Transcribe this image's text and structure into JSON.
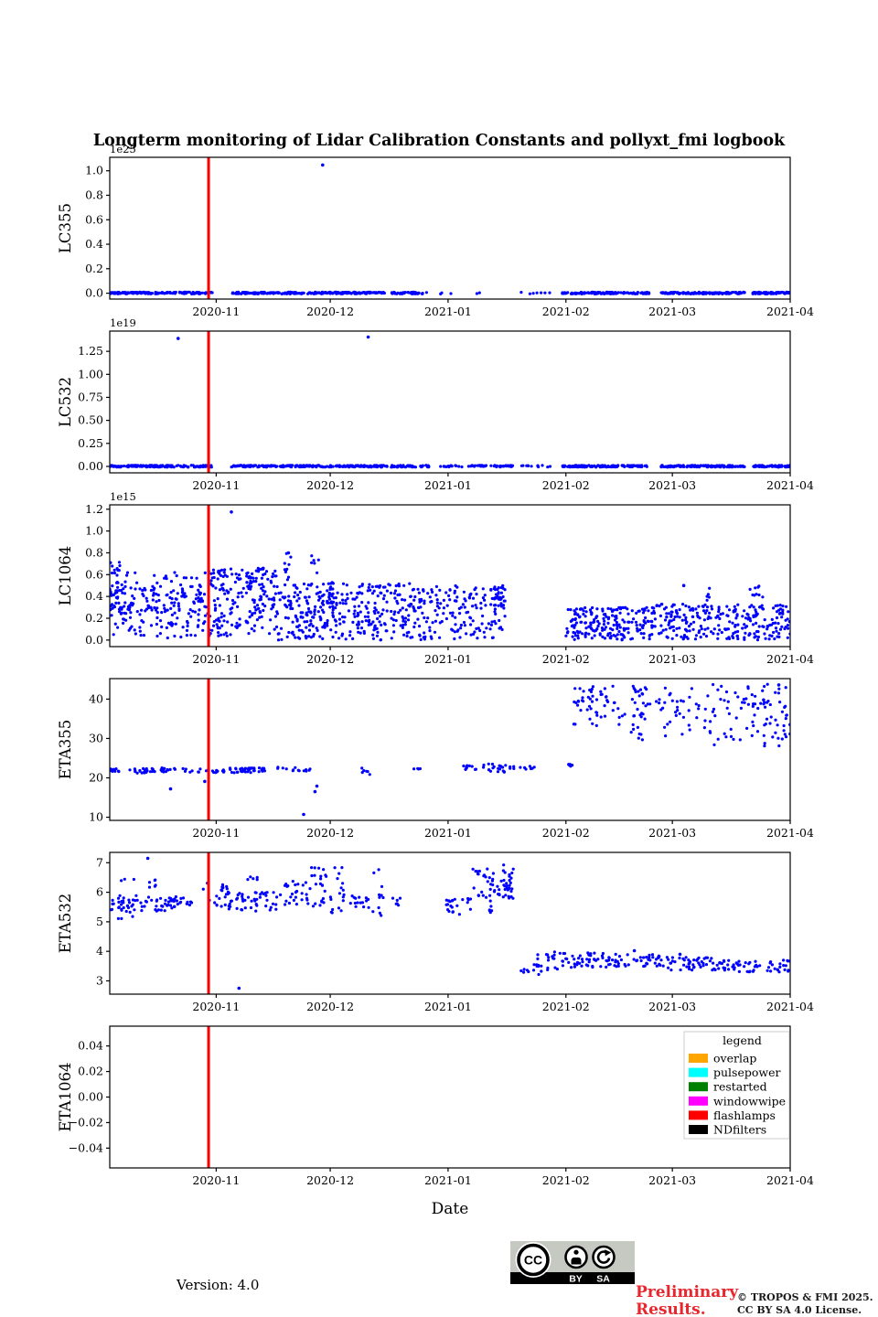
{
  "title": "Longterm monitoring of Lidar Calibration Constants and pollyxt_fmi logbook",
  "xlabel": "Date",
  "colors": {
    "marker": "#0000ff",
    "axis": "#000000",
    "event_flashlamps": "#ff0000",
    "legend_border": "#cccccc",
    "preliminary": "#e8262d",
    "cc_badge_gray": "#c6c8c2"
  },
  "footer": {
    "version": "Version: 4.0",
    "preliminary_line1": "Preliminary",
    "preliminary_line2": "Results.",
    "copyright_line1": "© TROPOS & FMI 2025.",
    "copyright_line2": "CC BY SA 4.0 License.",
    "cc_badge": {
      "cc_label": "CC",
      "by_label": "BY",
      "sa_label": "SA"
    }
  },
  "chart_data": {
    "type": "scatter",
    "title": "Longterm monitoring of Lidar Calibration Constants and pollyxt_fmi logbook",
    "xlabel": "Date",
    "x_axis": {
      "xlim_days": [
        0,
        179
      ],
      "start_date": "2020-10-04",
      "end_date": "2021-04-01",
      "tick_days": [
        28,
        58,
        89,
        120,
        148,
        179
      ],
      "tick_labels": [
        "2020-11",
        "2020-12",
        "2021-01",
        "2021-02",
        "2021-03",
        "2021-04"
      ]
    },
    "event_lines": [
      {
        "label": "flashlamps",
        "date": "2020-10-30",
        "day": 26,
        "color": "#ff0000",
        "width": 3
      }
    ],
    "legend": {
      "title": "legend",
      "position": "upper-right-of-last-panel",
      "entries": [
        {
          "label": "overlap",
          "color": "#ffa500"
        },
        {
          "label": "pulsepower",
          "color": "#00ffff"
        },
        {
          "label": "restarted",
          "color": "#008000"
        },
        {
          "label": "windowwipe",
          "color": "#ff00ff"
        },
        {
          "label": "flashlamps",
          "color": "#ff0000"
        },
        {
          "label": "NDfilters",
          "color": "#000000"
        }
      ]
    },
    "panels": [
      {
        "name": "LC355",
        "ylabel": "LC355",
        "offset_text": "1e25",
        "ylim": [
          -0.048,
          1.11
        ],
        "yticks": [
          0.0,
          0.2,
          0.4,
          0.6,
          0.8,
          1.0
        ],
        "ytick_labels": [
          "0.0",
          "0.2",
          "0.4",
          "0.6",
          "0.8",
          "1.0"
        ],
        "bands": [
          [
            0,
            27,
            -0.006,
            0.009,
            140
          ],
          [
            32,
            56,
            -0.006,
            0.009,
            130
          ],
          [
            56,
            73,
            -0.006,
            0.009,
            90
          ],
          [
            74,
            84,
            -0.006,
            0.009,
            45
          ],
          [
            87,
            116,
            -0.006,
            0.009,
            12
          ],
          [
            119,
            142,
            -0.006,
            0.009,
            120
          ],
          [
            145,
            167,
            -0.006,
            0.009,
            130
          ],
          [
            169,
            179,
            -0.006,
            0.009,
            60
          ]
        ],
        "points": [
          [
            56,
            1.047
          ]
        ]
      },
      {
        "name": "LC532",
        "ylabel": "LC532",
        "offset_text": "1e19",
        "ylim": [
          -0.07,
          1.47
        ],
        "yticks": [
          0.0,
          0.25,
          0.5,
          0.75,
          1.0,
          1.25
        ],
        "ytick_labels": [
          "0.00",
          "0.25",
          "0.50",
          "0.75",
          "1.00",
          "1.25"
        ],
        "bands": [
          [
            0,
            27,
            -0.008,
            0.012,
            150
          ],
          [
            32,
            56,
            -0.008,
            0.012,
            140
          ],
          [
            56,
            73,
            -0.008,
            0.012,
            100
          ],
          [
            74,
            84,
            -0.008,
            0.012,
            50
          ],
          [
            85,
            95,
            -0.008,
            0.012,
            18
          ],
          [
            95,
            106,
            -0.008,
            0.012,
            45
          ],
          [
            108,
            116,
            -0.008,
            0.012,
            12
          ],
          [
            119,
            142,
            -0.008,
            0.012,
            130
          ],
          [
            145,
            167,
            -0.008,
            0.012,
            140
          ],
          [
            169,
            179,
            -0.008,
            0.012,
            65
          ]
        ],
        "points": [
          [
            18,
            1.39
          ],
          [
            68,
            1.405
          ]
        ]
      },
      {
        "name": "LC1064",
        "ylabel": "LC1064",
        "offset_text": "1e15",
        "ylim": [
          -0.06,
          1.24
        ],
        "yticks": [
          0.0,
          0.2,
          0.4,
          0.6,
          0.8,
          1.0,
          1.2
        ],
        "ytick_labels": [
          "0.0",
          "0.2",
          "0.4",
          "0.6",
          "0.8",
          "1.0",
          "1.2"
        ],
        "bands": [
          [
            0,
            3,
            0.28,
            0.72,
            35
          ],
          [
            0,
            26,
            0.02,
            0.5,
            140
          ],
          [
            3,
            26,
            0.25,
            0.62,
            70
          ],
          [
            26,
            44,
            0.03,
            0.66,
            190
          ],
          [
            36,
            38,
            0.45,
            0.62,
            15
          ],
          [
            44,
            80,
            0.0,
            0.52,
            340
          ],
          [
            46,
            48,
            0.55,
            0.8,
            10
          ],
          [
            53,
            55,
            0.6,
            0.82,
            6
          ],
          [
            57,
            59,
            0.3,
            0.55,
            18
          ],
          [
            80,
            104,
            0.0,
            0.5,
            170
          ],
          [
            101,
            104,
            0.3,
            0.5,
            25
          ],
          [
            120,
            143,
            0.0,
            0.3,
            200
          ],
          [
            143,
            179,
            0.0,
            0.33,
            260
          ],
          [
            157,
            158,
            0.35,
            0.52,
            5
          ],
          [
            168,
            173,
            0.3,
            0.5,
            12
          ]
        ],
        "points": [
          [
            32,
            1.175
          ],
          [
            47,
            0.8
          ],
          [
            151,
            0.5
          ]
        ]
      },
      {
        "name": "ETA355",
        "ylabel": "ETA355",
        "offset_text": "",
        "ylim": [
          9.2,
          45.2
        ],
        "yticks": [
          10,
          20,
          30,
          40
        ],
        "ytick_labels": [
          "10",
          "20",
          "30",
          "40"
        ],
        "bands": [
          [
            0,
            3,
            21.6,
            22.4,
            10
          ],
          [
            5,
            12,
            21.2,
            22.4,
            20
          ],
          [
            13,
            18,
            21.5,
            22.6,
            16
          ],
          [
            19,
            26,
            21.4,
            22.4,
            12
          ],
          [
            27,
            31,
            21.2,
            22.1,
            10
          ],
          [
            31,
            41,
            21.3,
            22.6,
            40
          ],
          [
            44,
            47,
            22.2,
            22.7,
            4
          ],
          [
            48,
            53,
            21.7,
            22.8,
            10
          ],
          [
            66,
            69,
            20.5,
            22.6,
            6
          ],
          [
            80,
            83,
            22.1,
            22.4,
            4
          ],
          [
            93,
            97,
            21.9,
            23.3,
            10
          ],
          [
            98,
            104,
            20.8,
            23.6,
            18
          ],
          [
            104,
            112,
            22.2,
            23.5,
            12
          ],
          [
            120,
            122,
            22.9,
            23.5,
            6
          ],
          [
            122,
            127,
            33.5,
            43.8,
            25
          ],
          [
            127,
            138,
            31.4,
            43.5,
            35
          ],
          [
            138,
            158,
            29.5,
            43,
            65
          ],
          [
            158,
            179,
            28,
            44,
            85
          ]
        ],
        "points": [
          [
            16,
            17.2
          ],
          [
            25,
            19.1
          ],
          [
            51,
            10.7
          ],
          [
            54,
            16.5
          ],
          [
            54.5,
            17.9
          ],
          [
            176,
            43.6
          ],
          [
            172,
            39.8
          ]
        ]
      },
      {
        "name": "ETA532",
        "ylabel": "ETA532",
        "offset_text": "",
        "ylim": [
          2.55,
          7.35
        ],
        "yticks": [
          3,
          4,
          5,
          6,
          7
        ],
        "ytick_labels": [
          "3",
          "4",
          "5",
          "6",
          "7"
        ],
        "bands": [
          [
            0,
            8,
            5.35,
            5.95,
            28
          ],
          [
            2,
            7,
            5.1,
            6.45,
            10
          ],
          [
            8,
            18,
            5.35,
            5.85,
            32
          ],
          [
            10,
            13,
            6.1,
            6.45,
            6
          ],
          [
            14,
            22,
            5.45,
            5.85,
            16
          ],
          [
            24,
            32,
            5.5,
            6.35,
            22
          ],
          [
            30,
            45,
            5.35,
            6.0,
            48
          ],
          [
            36,
            39,
            6.3,
            6.55,
            5
          ],
          [
            46,
            53,
            5.5,
            6.4,
            26
          ],
          [
            53,
            57,
            5.5,
            6.95,
            22
          ],
          [
            57,
            62,
            5.3,
            6.85,
            18
          ],
          [
            63,
            68,
            5.5,
            5.9,
            14
          ],
          [
            68,
            72,
            5.0,
            6.9,
            12
          ],
          [
            74,
            77,
            5.55,
            5.8,
            6
          ],
          [
            88,
            95,
            5.2,
            5.8,
            22
          ],
          [
            95,
            101,
            5.3,
            6.8,
            26
          ],
          [
            100,
            106,
            5.8,
            6.5,
            30
          ],
          [
            103,
            108,
            5.6,
            6.95,
            12
          ],
          [
            108,
            113,
            3.15,
            3.65,
            10
          ],
          [
            112,
            121,
            3.3,
            4.05,
            28
          ],
          [
            121,
            131,
            3.45,
            3.95,
            38
          ],
          [
            131,
            146,
            3.45,
            3.9,
            48
          ],
          [
            146,
            161,
            3.35,
            3.8,
            52
          ],
          [
            161,
            179,
            3.3,
            3.7,
            58
          ]
        ],
        "points": [
          [
            10,
            7.15
          ],
          [
            34,
            2.75
          ],
          [
            138,
            4.02
          ],
          [
            150,
            3.9
          ]
        ]
      },
      {
        "name": "ETA1064",
        "ylabel": "ETA1064",
        "offset_text": "",
        "ylim": [
          -0.0555,
          0.0555
        ],
        "yticks": [
          -0.04,
          -0.02,
          0.0,
          0.02,
          0.04
        ],
        "ytick_labels": [
          "−0.04",
          "−0.02",
          "0.00",
          "0.02",
          "0.04"
        ],
        "bands": [],
        "points": []
      }
    ]
  }
}
